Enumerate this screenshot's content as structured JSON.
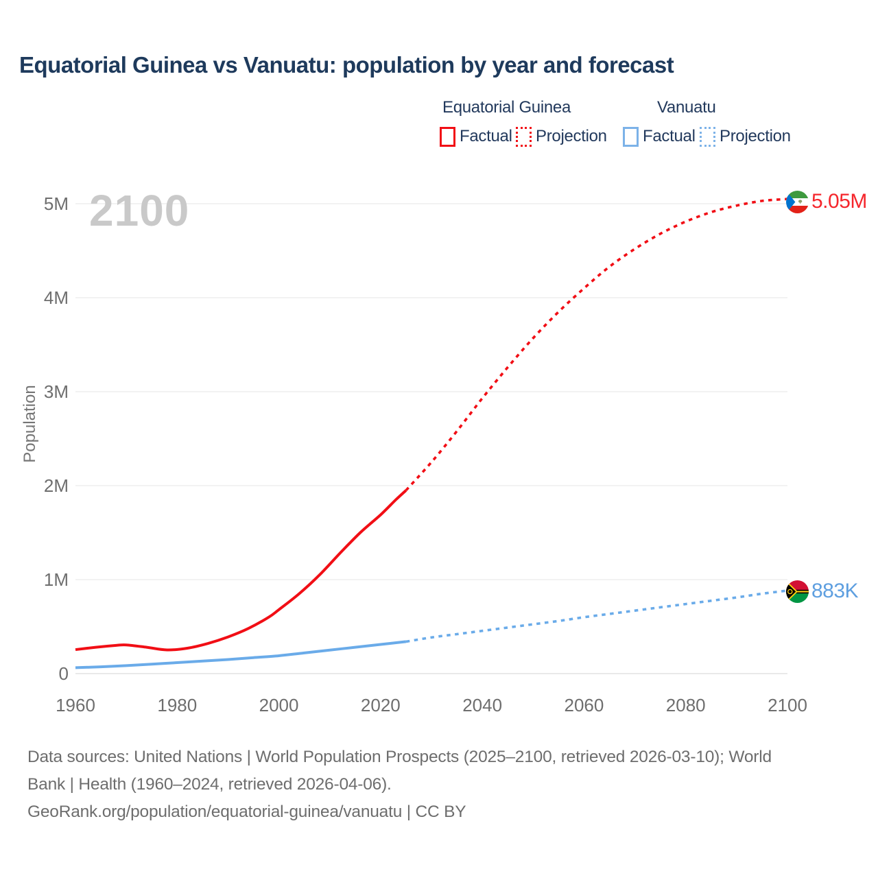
{
  "title": "Equatorial Guinea vs Vanuatu: population by year and forecast",
  "watermark": "2100",
  "legend": {
    "groups": [
      {
        "name": "Equatorial Guinea",
        "items": [
          {
            "label": "Factual",
            "style": "solid",
            "color": "#f10e15"
          },
          {
            "label": "Projection",
            "style": "dotted",
            "color": "#f10e15"
          }
        ]
      },
      {
        "name": "Vanuatu",
        "items": [
          {
            "label": "Factual",
            "style": "solid",
            "color": "#7cb2e8"
          },
          {
            "label": "Projection",
            "style": "dotted",
            "color": "#7cb2e8"
          }
        ]
      }
    ]
  },
  "y_axis": {
    "label": "Population",
    "ticks": [
      "5M",
      "4M",
      "3M",
      "2M",
      "1M",
      "0"
    ],
    "tick_values": [
      5,
      4,
      3,
      2,
      1,
      0
    ]
  },
  "x_axis": {
    "ticks": [
      "1960",
      "1980",
      "2000",
      "2020",
      "2040",
      "2060",
      "2080",
      "2100"
    ],
    "tick_values": [
      1960,
      1980,
      2000,
      2020,
      2040,
      2060,
      2080,
      2100
    ]
  },
  "end_labels": {
    "equatorial_guinea": "5.05M",
    "vanuatu": "883K"
  },
  "footer": {
    "line1": "Data sources: United Nations | World Population Prospects (2025–2100, retrieved 2026-03-10); World",
    "line2": "Bank | Health (1960–2024, retrieved 2026-04-06).",
    "line3": "GeoRank.org/population/equatorial-guinea/vanuatu | CC BY"
  },
  "colors": {
    "red_line": "#f10e15",
    "blue_line": "#6aabe9",
    "red_label": "#f5262c",
    "blue_label": "#5e9fe0",
    "navy_text": "#22395c",
    "title_text": "#1e3a5c",
    "axis_text": "#6e6e6e",
    "grid": "#ededed",
    "zero_line": "#e2e2e2",
    "watermark": "#c9c9c9"
  },
  "chart_data": {
    "type": "line",
    "title": "Equatorial Guinea vs Vanuatu: population by year and forecast",
    "xlabel": "",
    "ylabel": "Population",
    "xlim": [
      1960,
      2100
    ],
    "ylim": [
      0,
      5250000
    ],
    "x_ticks": [
      1960,
      1980,
      2000,
      2020,
      2040,
      2060,
      2080,
      2100
    ],
    "y_ticks_millions": [
      0,
      1,
      2,
      3,
      4,
      5
    ],
    "grid": "horizontal",
    "legend_position": "top-right",
    "series": [
      {
        "name": "Equatorial Guinea — Factual",
        "style": "solid",
        "color": "#f10e15",
        "x": [
          1960,
          1964,
          1968,
          1970,
          1974,
          1978,
          1982,
          1986,
          1990,
          1994,
          1998,
          2000,
          2004,
          2008,
          2012,
          2016,
          2020,
          2023,
          2025
        ],
        "y_millions": [
          0.255,
          0.28,
          0.3,
          0.305,
          0.28,
          0.252,
          0.27,
          0.32,
          0.39,
          0.48,
          0.6,
          0.68,
          0.85,
          1.05,
          1.28,
          1.5,
          1.69,
          1.85,
          1.95
        ]
      },
      {
        "name": "Equatorial Guinea — Projection",
        "style": "dotted",
        "color": "#f10e15",
        "x": [
          2025,
          2030,
          2035,
          2040,
          2045,
          2050,
          2055,
          2060,
          2065,
          2070,
          2075,
          2080,
          2085,
          2090,
          2095,
          2100
        ],
        "y_millions": [
          1.95,
          2.25,
          2.58,
          2.93,
          3.26,
          3.57,
          3.85,
          4.1,
          4.33,
          4.52,
          4.68,
          4.81,
          4.91,
          4.98,
          5.03,
          5.05
        ]
      },
      {
        "name": "Vanuatu — Factual",
        "style": "solid",
        "color": "#6aabe9",
        "x": [
          1960,
          1965,
          1970,
          1975,
          1980,
          1985,
          1990,
          1995,
          2000,
          2005,
          2010,
          2015,
          2020,
          2025
        ],
        "y_millions": [
          0.063,
          0.072,
          0.085,
          0.1,
          0.117,
          0.133,
          0.15,
          0.17,
          0.19,
          0.22,
          0.25,
          0.28,
          0.31,
          0.34
        ]
      },
      {
        "name": "Vanuatu — Projection",
        "style": "dotted",
        "color": "#6aabe9",
        "x": [
          2025,
          2030,
          2035,
          2040,
          2045,
          2050,
          2055,
          2060,
          2065,
          2070,
          2075,
          2080,
          2085,
          2090,
          2095,
          2100
        ],
        "y_millions": [
          0.34,
          0.385,
          0.42,
          0.455,
          0.49,
          0.525,
          0.56,
          0.6,
          0.635,
          0.67,
          0.705,
          0.74,
          0.775,
          0.81,
          0.85,
          0.883
        ]
      }
    ],
    "end_values": {
      "equatorial_guinea_2100": "5.05M",
      "vanuatu_2100": "883K"
    }
  }
}
